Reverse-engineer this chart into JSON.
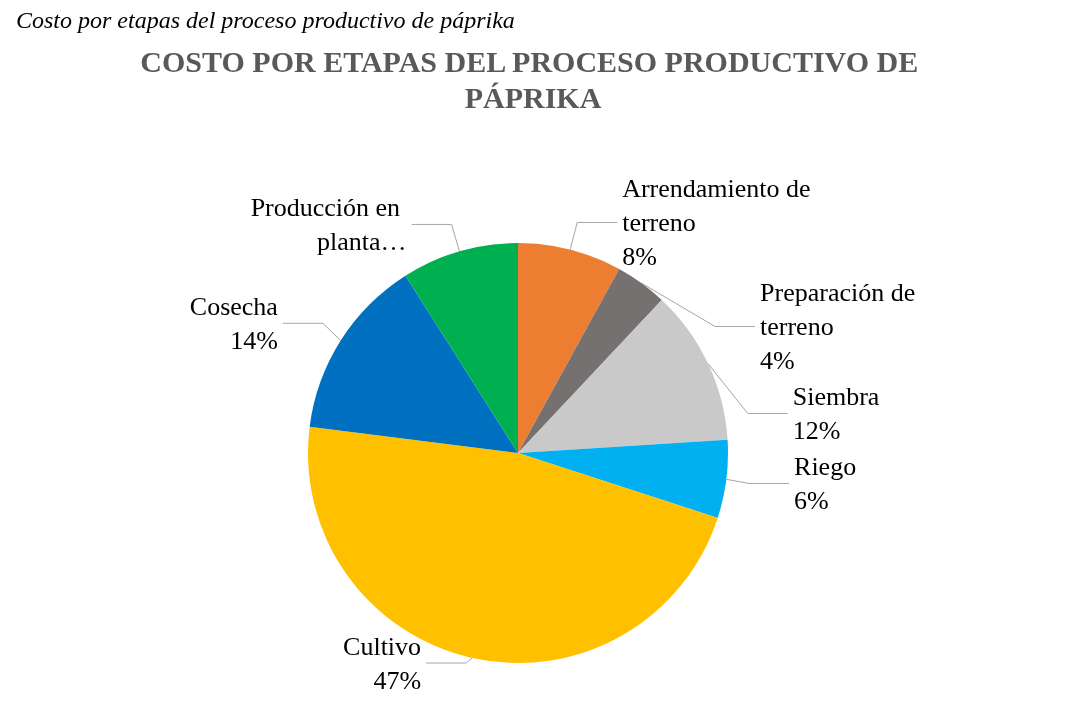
{
  "chart_data": {
    "type": "pie",
    "title": "COSTO POR ETAPAS DEL PROCESO PRODUCTIVO DE PÁPRIKA",
    "annotations": [
      "Costo por etapas del proceso productivo de páprika"
    ],
    "categories": [
      "Arrendamiento de terreno",
      "Preparación de terreno",
      "Siembra",
      "Riego",
      "Cultivo",
      "Cosecha",
      "Producción en planta…"
    ],
    "values": [
      8,
      4,
      12,
      6,
      47,
      14,
      9
    ],
    "value_labels": [
      "8%",
      "4%",
      "12%",
      "6%",
      "47%",
      "14%",
      null
    ],
    "colors": [
      "#ed7d31",
      "#767171",
      "#c9c9c9",
      "#00b0f0",
      "#ffc000",
      "#0070c0",
      "#00b050"
    ],
    "legend": false
  }
}
